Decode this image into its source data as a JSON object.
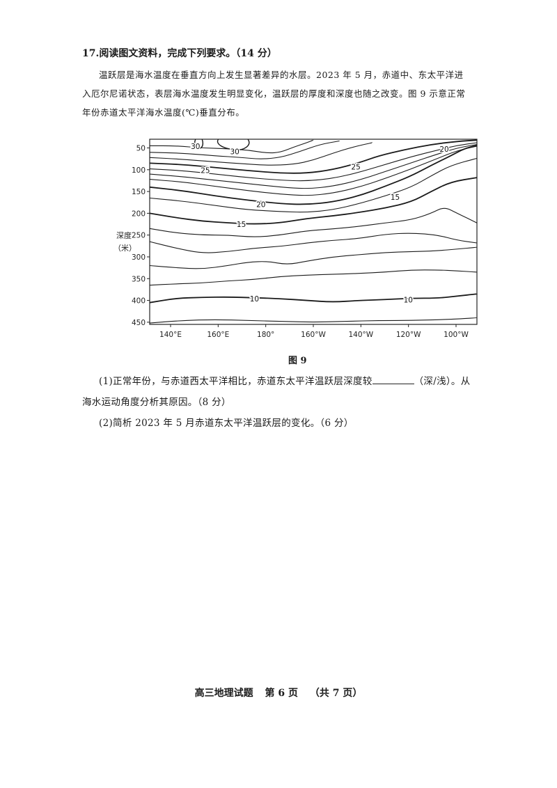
{
  "question": {
    "title": "17.阅读图文资料，完成下列要求。（14 分）",
    "intro": "温跃层是海水温度在垂直方向上发生显著差异的水层。2023 年 5 月，赤道中、东太平洋进入厄尔尼诺状态，表层海水温度发生明显变化，温跃层的厚度和深度也随之改变。图 9 示意正常年份赤道太平洋海水温度(℃)垂直分布。",
    "figure_caption": "图 9",
    "sub1_before": "(1)正常年份，与赤道西太平洋相比，赤道东太平洋温跃层深度较",
    "sub1_after": "（深/浅）。从海水运动角度分析其原因。（8 分）",
    "sub2": "(2)简析 2023 年 5 月赤道东太平洋温跃层的变化。（6 分）"
  },
  "footer": {
    "subject": "高三地理试题",
    "page": "第 6 页",
    "total": "（共 7 页）"
  },
  "chart_data": {
    "type": "contour",
    "ylabel_line1": "深度",
    "ylabel_line2": "（米）",
    "y_ticks": [
      "50",
      "100",
      "150",
      "200",
      "250",
      "300",
      "350",
      "400",
      "450"
    ],
    "x_ticks": [
      "140°E",
      "160°E",
      "180°",
      "160°W",
      "140°W",
      "120°W",
      "100°W"
    ],
    "ylim": [
      30,
      455
    ],
    "contour_labels": [
      "30",
      "30",
      "25",
      "25",
      "20",
      "20",
      "15",
      "15",
      "10",
      "10"
    ],
    "isotherms": [
      {
        "temp": 28,
        "label": "",
        "points": [
          [
            0,
            45
          ],
          [
            8,
            45
          ],
          [
            16,
            50
          ],
          [
            24,
            52
          ],
          [
            30,
            55
          ],
          [
            36,
            62
          ],
          [
            40,
            60
          ],
          [
            44,
            48
          ],
          [
            48,
            38
          ],
          [
            50,
            32
          ]
        ]
      },
      {
        "temp": 27,
        "label": "",
        "points": [
          [
            0,
            60
          ],
          [
            10,
            62
          ],
          [
            20,
            68
          ],
          [
            28,
            72
          ],
          [
            34,
            76
          ],
          [
            40,
            72
          ],
          [
            46,
            58
          ],
          [
            52,
            42
          ],
          [
            58,
            34
          ]
        ]
      },
      {
        "temp": 26,
        "label": "",
        "points": [
          [
            0,
            72
          ],
          [
            10,
            76
          ],
          [
            20,
            82
          ],
          [
            28,
            86
          ],
          [
            36,
            90
          ],
          [
            44,
            88
          ],
          [
            50,
            78
          ],
          [
            56,
            62
          ],
          [
            62,
            48
          ],
          [
            68,
            38
          ]
        ]
      },
      {
        "temp": 25,
        "label": "25",
        "points": [
          [
            0,
            85
          ],
          [
            10,
            88
          ],
          [
            20,
            95
          ],
          [
            30,
            102
          ],
          [
            40,
            108
          ],
          [
            48,
            108
          ],
          [
            56,
            100
          ],
          [
            64,
            84
          ],
          [
            70,
            68
          ],
          [
            78,
            54
          ],
          [
            86,
            42
          ],
          [
            94,
            35
          ],
          [
            100,
            32
          ]
        ]
      },
      {
        "temp": 24,
        "label": "",
        "points": [
          [
            0,
            98
          ],
          [
            10,
            102
          ],
          [
            20,
            110
          ],
          [
            30,
            118
          ],
          [
            40,
            124
          ],
          [
            48,
            126
          ],
          [
            56,
            120
          ],
          [
            64,
            106
          ],
          [
            72,
            88
          ],
          [
            80,
            70
          ],
          [
            88,
            55
          ],
          [
            94,
            44
          ],
          [
            100,
            38
          ]
        ]
      },
      {
        "temp": 23,
        "label": "",
        "points": [
          [
            0,
            110
          ],
          [
            10,
            116
          ],
          [
            20,
            124
          ],
          [
            30,
            132
          ],
          [
            40,
            140
          ],
          [
            48,
            144
          ],
          [
            56,
            138
          ],
          [
            64,
            124
          ],
          [
            72,
            104
          ],
          [
            80,
            84
          ],
          [
            88,
            64
          ],
          [
            94,
            50
          ],
          [
            100,
            42
          ]
        ]
      },
      {
        "temp": 22,
        "label": "",
        "points": [
          [
            0,
            122
          ],
          [
            10,
            128
          ],
          [
            20,
            138
          ],
          [
            30,
            148
          ],
          [
            40,
            156
          ],
          [
            48,
            160
          ],
          [
            56,
            154
          ],
          [
            64,
            140
          ],
          [
            72,
            120
          ],
          [
            80,
            98
          ],
          [
            88,
            74
          ],
          [
            94,
            56
          ],
          [
            100,
            46
          ]
        ]
      },
      {
        "temp": 20,
        "label": "20",
        "points": [
          [
            0,
            140
          ],
          [
            10,
            148
          ],
          [
            20,
            160
          ],
          [
            30,
            170
          ],
          [
            40,
            178
          ],
          [
            48,
            180
          ],
          [
            56,
            174
          ],
          [
            64,
            160
          ],
          [
            72,
            138
          ],
          [
            80,
            114
          ],
          [
            86,
            90
          ],
          [
            92,
            68
          ],
          [
            96,
            52
          ],
          [
            100,
            44
          ]
        ]
      },
      {
        "temp": 18,
        "label": "",
        "points": [
          [
            0,
            165
          ],
          [
            10,
            172
          ],
          [
            20,
            182
          ],
          [
            30,
            192
          ],
          [
            40,
            196
          ],
          [
            48,
            198
          ],
          [
            56,
            192
          ],
          [
            64,
            178
          ],
          [
            72,
            160
          ],
          [
            80,
            140
          ],
          [
            86,
            114
          ],
          [
            92,
            90
          ],
          [
            100,
            74
          ]
        ]
      },
      {
        "temp": 15,
        "label": "15",
        "points": [
          [
            0,
            200
          ],
          [
            8,
            210
          ],
          [
            16,
            218
          ],
          [
            24,
            222
          ],
          [
            32,
            225
          ],
          [
            40,
            222
          ],
          [
            48,
            212
          ],
          [
            56,
            206
          ],
          [
            64,
            198
          ],
          [
            72,
            188
          ],
          [
            80,
            174
          ],
          [
            86,
            150
          ],
          [
            92,
            128
          ],
          [
            100,
            118
          ]
        ]
      },
      {
        "temp": 13,
        "label": "",
        "points": [
          [
            0,
            235
          ],
          [
            8,
            245
          ],
          [
            16,
            250
          ],
          [
            24,
            250
          ],
          [
            32,
            255
          ],
          [
            40,
            250
          ],
          [
            48,
            240
          ],
          [
            56,
            236
          ],
          [
            64,
            230
          ],
          [
            72,
            222
          ],
          [
            80,
            215
          ],
          [
            86,
            200
          ],
          [
            90,
            185
          ],
          [
            94,
            200
          ],
          [
            100,
            222
          ]
        ]
      },
      {
        "temp": 12,
        "label": "",
        "points": [
          [
            0,
            265
          ],
          [
            8,
            280
          ],
          [
            16,
            292
          ],
          [
            24,
            288
          ],
          [
            32,
            280
          ],
          [
            40,
            276
          ],
          [
            48,
            268
          ],
          [
            56,
            262
          ],
          [
            64,
            258
          ],
          [
            72,
            248
          ],
          [
            80,
            245
          ],
          [
            88,
            250
          ],
          [
            94,
            262
          ],
          [
            100,
            268
          ]
        ]
      },
      {
        "temp": 11,
        "label": "",
        "points": [
          [
            0,
            320
          ],
          [
            8,
            325
          ],
          [
            16,
            328
          ],
          [
            24,
            320
          ],
          [
            30,
            312
          ],
          [
            36,
            310
          ],
          [
            42,
            318
          ],
          [
            48,
            310
          ],
          [
            56,
            300
          ],
          [
            64,
            295
          ],
          [
            72,
            290
          ],
          [
            80,
            288
          ],
          [
            88,
            286
          ],
          [
            94,
            282
          ],
          [
            100,
            278
          ]
        ]
      },
      {
        "temp": 10.5,
        "label": "",
        "points": [
          [
            0,
            365
          ],
          [
            8,
            362
          ],
          [
            16,
            360
          ],
          [
            24,
            355
          ],
          [
            32,
            352
          ],
          [
            40,
            345
          ],
          [
            48,
            342
          ],
          [
            56,
            340
          ],
          [
            64,
            338
          ],
          [
            72,
            335
          ],
          [
            80,
            330
          ],
          [
            88,
            330
          ],
          [
            94,
            332
          ],
          [
            100,
            335
          ]
        ]
      },
      {
        "temp": 10,
        "label": "10",
        "points": [
          [
            0,
            405
          ],
          [
            8,
            395
          ],
          [
            16,
            393
          ],
          [
            24,
            392
          ],
          [
            32,
            394
          ],
          [
            40,
            396
          ],
          [
            48,
            400
          ],
          [
            56,
            404
          ],
          [
            64,
            400
          ],
          [
            72,
            398
          ],
          [
            80,
            395
          ],
          [
            88,
            395
          ],
          [
            94,
            390
          ],
          [
            100,
            385
          ]
        ]
      },
      {
        "temp": 9,
        "label": "",
        "points": [
          [
            0,
            452
          ],
          [
            10,
            446
          ],
          [
            20,
            444
          ],
          [
            30,
            446
          ],
          [
            40,
            448
          ],
          [
            50,
            450
          ],
          [
            60,
            448
          ],
          [
            70,
            446
          ],
          [
            80,
            446
          ],
          [
            90,
            444
          ],
          [
            100,
            440
          ]
        ]
      }
    ]
  }
}
